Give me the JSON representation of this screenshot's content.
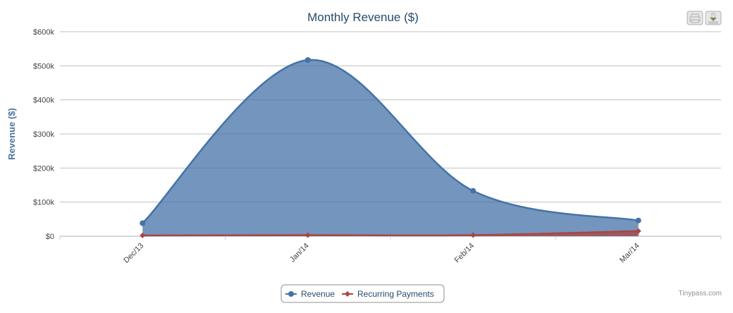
{
  "chart_data": {
    "type": "area",
    "title": "Monthly Revenue ($)",
    "ylabel": "Revenue ($)",
    "xlabel": "",
    "categories": [
      "Dec/13",
      "Jan/14",
      "Feb/14",
      "Mar/14"
    ],
    "ylim": [
      0,
      600000
    ],
    "yticks": [
      0,
      100000,
      200000,
      300000,
      400000,
      500000,
      600000
    ],
    "ytick_labels": [
      "$0",
      "$100k",
      "$200k",
      "$300k",
      "$400k",
      "$500k",
      "$600k"
    ],
    "grid": true,
    "legend_position": "bottom-center",
    "series": [
      {
        "name": "Revenue",
        "values": [
          38000,
          517000,
          133000,
          46000
        ],
        "color": "#4572a7",
        "marker": "circle"
      },
      {
        "name": "Recurring Payments",
        "values": [
          2000,
          3000,
          3000,
          15000
        ],
        "color": "#aa4643",
        "marker": "diamond"
      }
    ]
  },
  "toolbar": {
    "print_icon": "printer-icon",
    "export_icon": "download-icon"
  },
  "credits": "Tinypass.com"
}
